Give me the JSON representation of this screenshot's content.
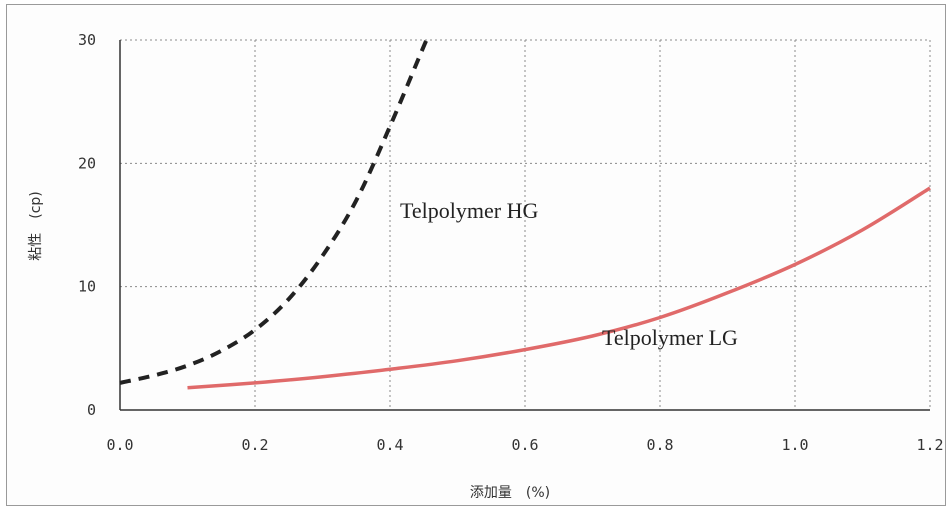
{
  "chart_data": {
    "type": "line",
    "title": "",
    "xlabel": "添加量　(%)",
    "ylabel": "粘性　(cp)",
    "xlim": [
      0.0,
      1.2
    ],
    "ylim": [
      0,
      30
    ],
    "x_ticks": [
      "0.0",
      "0.2",
      "0.4",
      "0.6",
      "0.8",
      "1.0",
      "1.2"
    ],
    "y_ticks": [
      "0",
      "10",
      "20",
      "30"
    ],
    "grid": true,
    "series": [
      {
        "name": "Telpolymer HG",
        "color": "#222222",
        "line_style": "dashed",
        "x": [
          0.0,
          0.05,
          0.1,
          0.15,
          0.2,
          0.25,
          0.3,
          0.35,
          0.4,
          0.45,
          0.455
        ],
        "y": [
          2.2,
          2.8,
          3.6,
          4.8,
          6.5,
          9.0,
          12.5,
          17.0,
          23.0,
          29.5,
          30.0
        ]
      },
      {
        "name": "Telpolymer LG",
        "color": "#e06a6a",
        "line_style": "solid",
        "x": [
          0.1,
          0.2,
          0.3,
          0.4,
          0.5,
          0.6,
          0.7,
          0.8,
          0.9,
          1.0,
          1.1,
          1.2
        ],
        "y": [
          1.8,
          2.2,
          2.7,
          3.3,
          4.0,
          4.9,
          6.0,
          7.5,
          9.5,
          11.8,
          14.6,
          18.0
        ]
      }
    ]
  }
}
